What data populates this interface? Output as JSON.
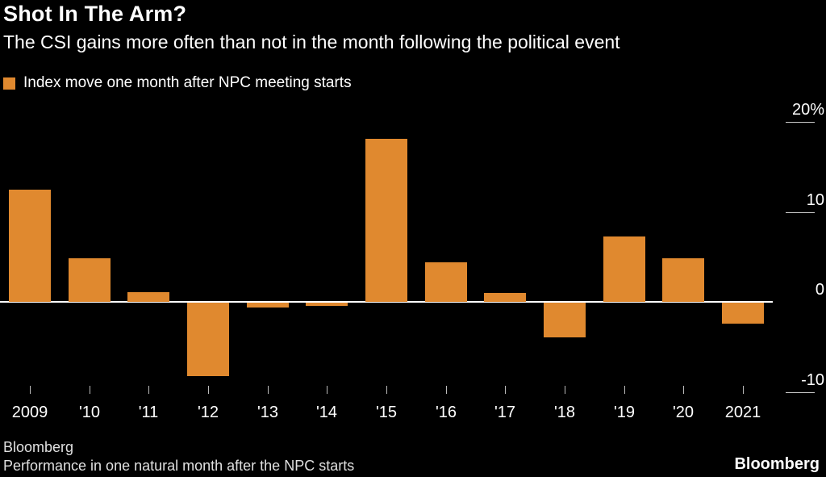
{
  "header": {
    "title": "Shot In The Arm?",
    "subtitle": "The CSI gains more often than not in the month following the political event"
  },
  "legend": {
    "label": "Index move one month after NPC meeting starts",
    "swatch_color": "#E0892F"
  },
  "chart_data": {
    "type": "bar",
    "title": "Shot In The Arm?",
    "subtitle": "The CSI gains more often than not in the month following the political event",
    "series_name": "Index move one month after NPC meeting starts",
    "categories": [
      "2009",
      "'10",
      "'11",
      "'12",
      "'13",
      "'14",
      "'15",
      "'16",
      "'17",
      "'18",
      "'19",
      "'20",
      "2021"
    ],
    "values": [
      12.5,
      4.8,
      1.1,
      -8.2,
      -0.5,
      -0.4,
      18.1,
      4.4,
      1.0,
      -3.9,
      7.3,
      4.8,
      -2.3
    ],
    "unit": "%",
    "ylim": [
      -12.5,
      21.5
    ],
    "yticks": [
      {
        "value": 20,
        "label": "20%"
      },
      {
        "value": 10,
        "label": "10"
      },
      {
        "value": 0,
        "label": "0"
      },
      {
        "value": -10,
        "label": "-10"
      }
    ],
    "bar_color": "#E0892F",
    "background_color": "#000000",
    "grid": "right-edge tick segments only, full-width zero line",
    "legend_position": "top-left"
  },
  "footer": {
    "source": "Bloomberg",
    "note": "Performance in one natural month after the NPC starts",
    "logo": "Bloomberg"
  }
}
